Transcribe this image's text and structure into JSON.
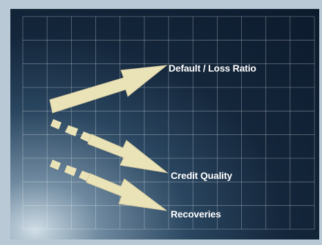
{
  "diagram": {
    "labels": {
      "default_loss_ratio": "Default / Loss Ratio",
      "credit_quality": "Credit Quality",
      "recoveries": "Recoveries"
    },
    "arrows": [
      {
        "id": "default-loss-ratio",
        "direction": "up",
        "style": "solid"
      },
      {
        "id": "credit-quality",
        "direction": "down",
        "style": "dashed"
      },
      {
        "id": "recoveries",
        "direction": "down",
        "style": "dashed"
      }
    ],
    "colors": {
      "frame": "#b9cad6",
      "panel": "#0c1a2c",
      "grid": "#ffffff",
      "arrow": "#ebe3b8",
      "label": "#ffffff"
    }
  }
}
